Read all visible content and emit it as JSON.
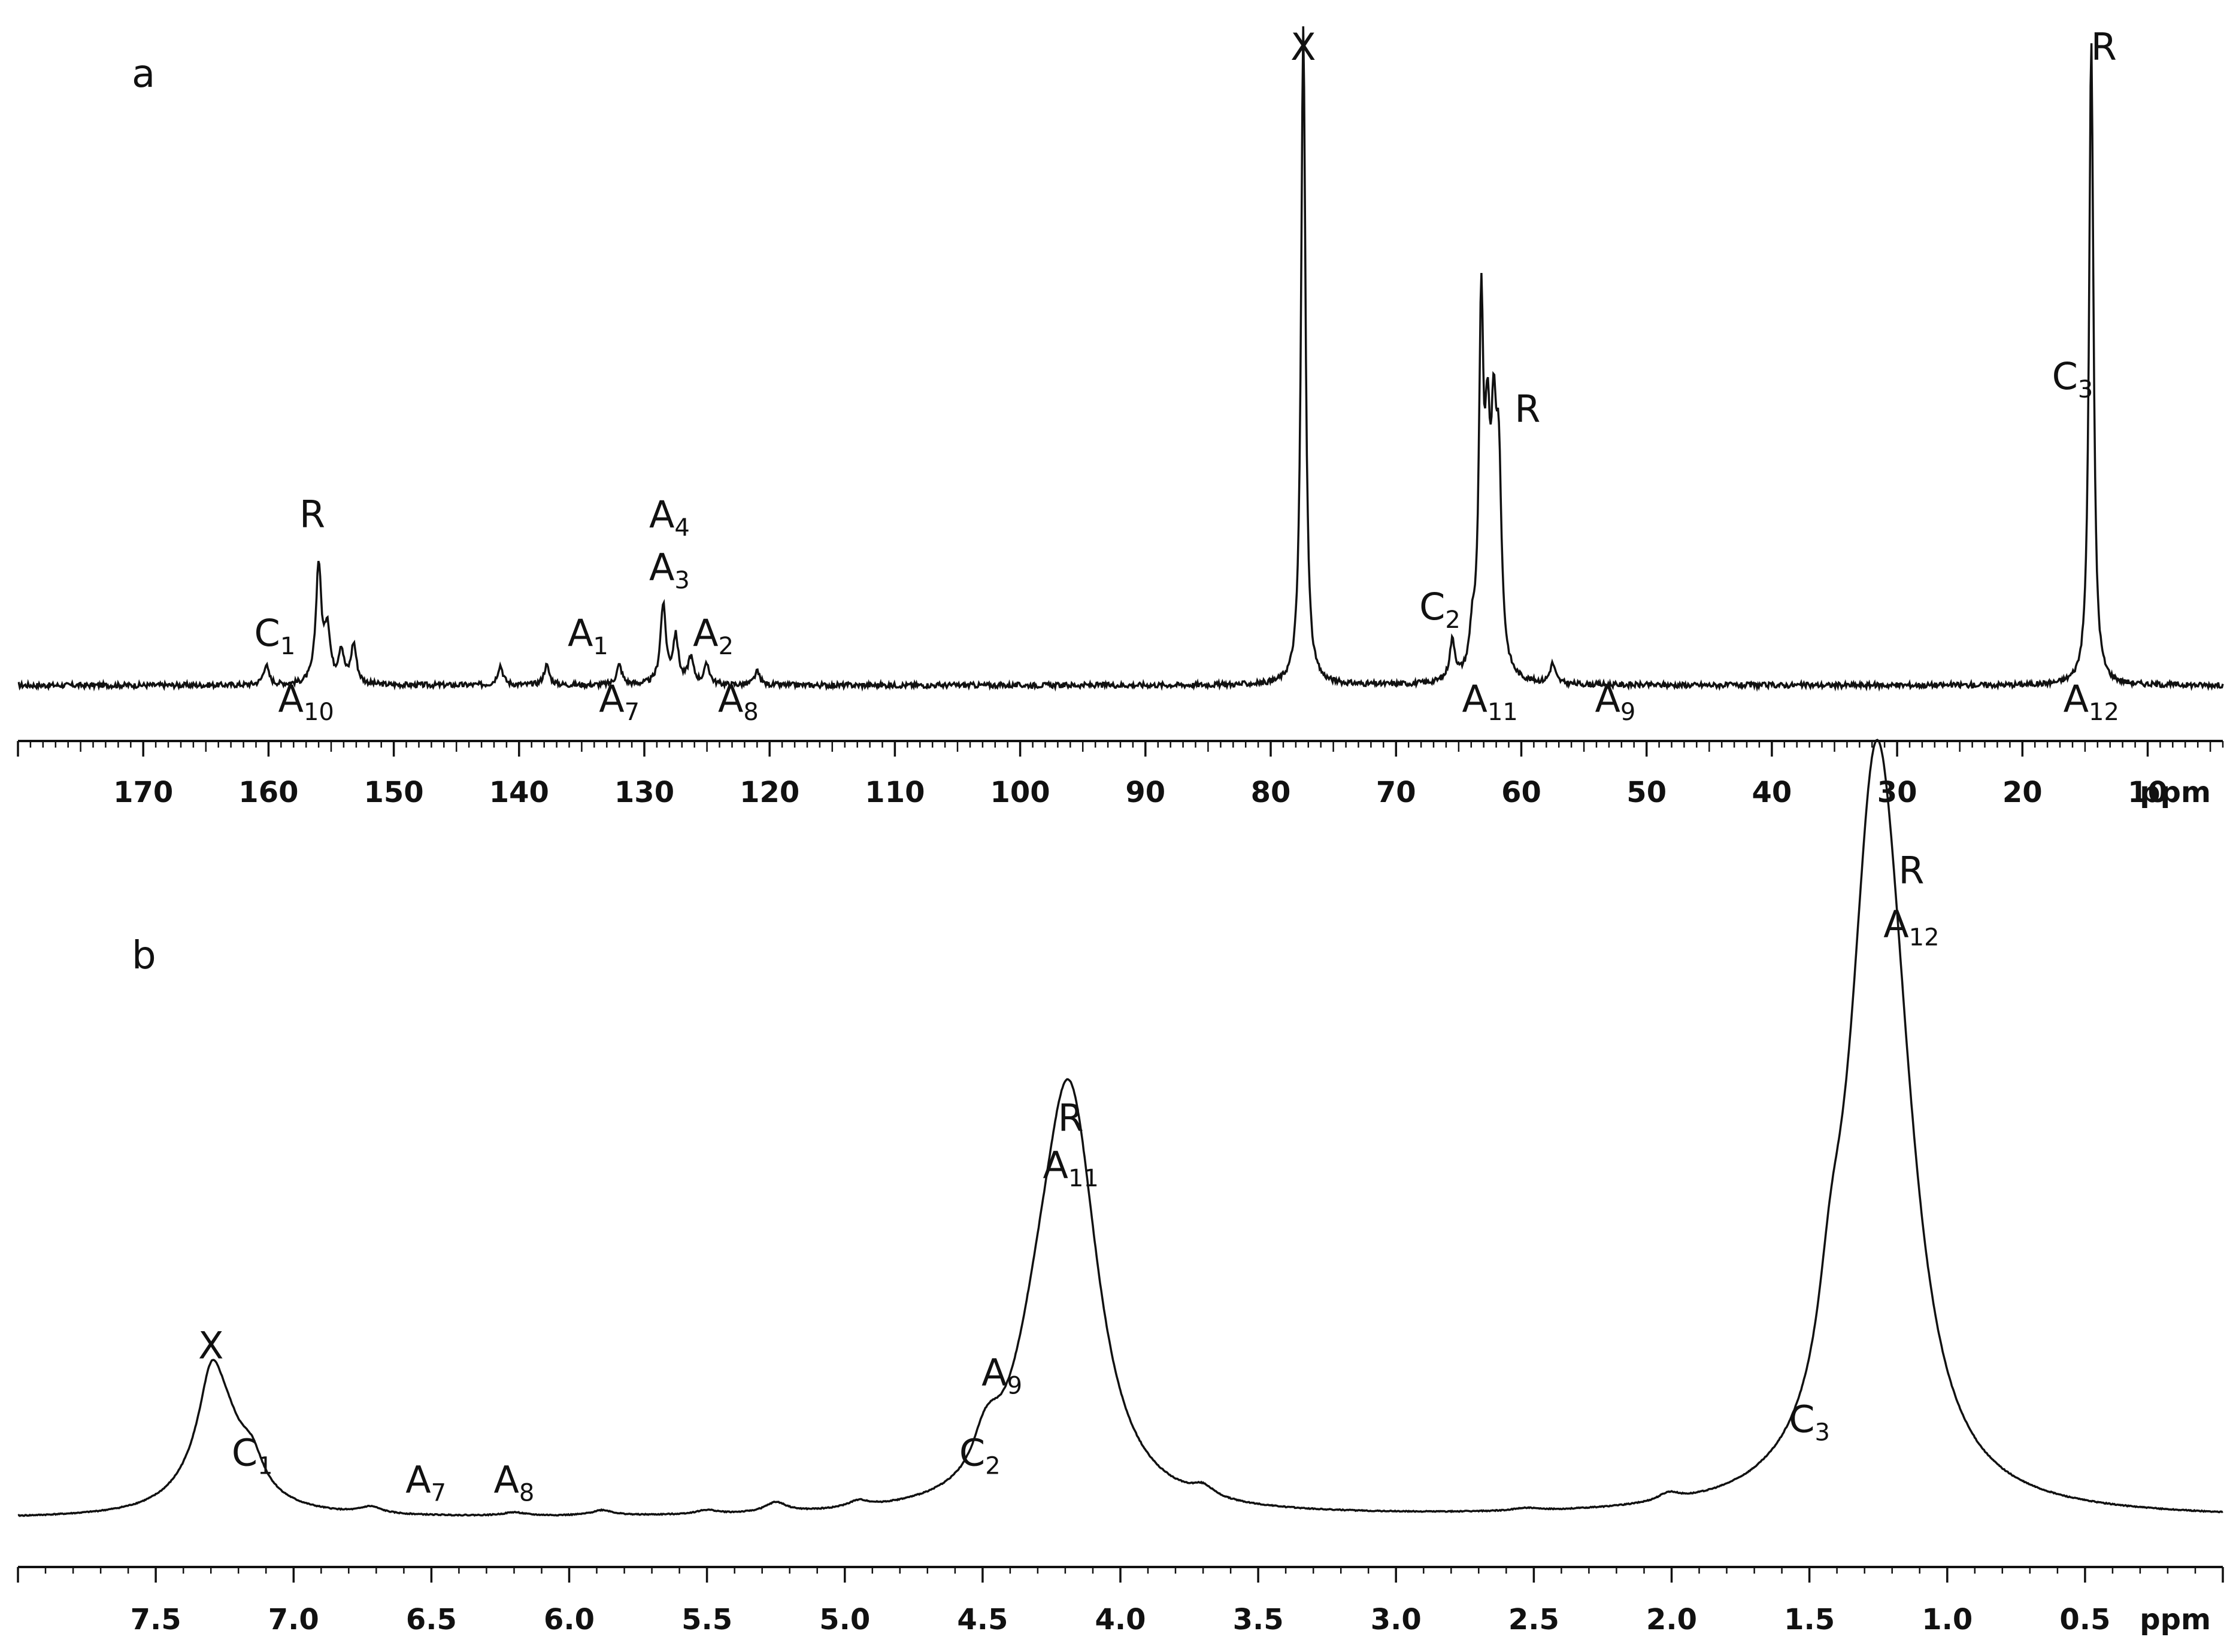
{
  "chart_data": [
    {
      "type": "line",
      "panel": "a",
      "xlabel": "ppm",
      "x_reversed": true,
      "xlim": [
        180,
        4
      ],
      "x_ticks": [
        170,
        160,
        150,
        140,
        130,
        120,
        110,
        100,
        90,
        80,
        70,
        60,
        50,
        40,
        30,
        20,
        10
      ],
      "y_axis_shown": false,
      "grid": false,
      "legend": "none",
      "line_color": "#111111",
      "peaks": [
        {
          "ppm": 160.2,
          "height": 0.03
        },
        {
          "ppm": 156.0,
          "height": 0.18
        },
        {
          "ppm": 155.3,
          "height": 0.08
        },
        {
          "ppm": 154.2,
          "height": 0.05
        },
        {
          "ppm": 153.2,
          "height": 0.06
        },
        {
          "ppm": 141.5,
          "height": 0.03
        },
        {
          "ppm": 137.8,
          "height": 0.03
        },
        {
          "ppm": 132.0,
          "height": 0.03
        },
        {
          "ppm": 128.5,
          "height": 0.12
        },
        {
          "ppm": 127.5,
          "height": 0.07
        },
        {
          "ppm": 126.3,
          "height": 0.04
        },
        {
          "ppm": 125.0,
          "height": 0.03
        },
        {
          "ppm": 121.0,
          "height": 0.02
        },
        {
          "ppm": 77.4,
          "height": 1.0
        },
        {
          "ppm": 65.5,
          "height": 0.06
        },
        {
          "ppm": 63.9,
          "height": 0.06
        },
        {
          "ppm": 63.2,
          "height": 0.52
        },
        {
          "ppm": 62.7,
          "height": 0.3
        },
        {
          "ppm": 62.2,
          "height": 0.3
        },
        {
          "ppm": 61.8,
          "height": 0.28
        },
        {
          "ppm": 57.5,
          "height": 0.03
        },
        {
          "ppm": 14.5,
          "height": 0.98
        }
      ],
      "annotations": [
        {
          "base": "X",
          "sub": "",
          "ppm": 77.4,
          "level": 0.95
        },
        {
          "base": "R",
          "sub": "",
          "ppm": 13.5,
          "level": 0.95
        },
        {
          "base": "C",
          "sub": "3",
          "ppm": 16.0,
          "level": 0.45
        },
        {
          "base": "R",
          "sub": "",
          "ppm": 59.5,
          "level": 0.4
        },
        {
          "base": "C",
          "sub": "2",
          "ppm": 66.5,
          "level": 0.1
        },
        {
          "base": "A",
          "sub": "11",
          "ppm": 62.5,
          "level": -0.04
        },
        {
          "base": "A",
          "sub": "9",
          "ppm": 52.5,
          "level": -0.04
        },
        {
          "base": "A",
          "sub": "12",
          "ppm": 14.5,
          "level": -0.04
        },
        {
          "base": "R",
          "sub": "",
          "ppm": 156.5,
          "level": 0.24
        },
        {
          "base": "C",
          "sub": "1",
          "ppm": 159.5,
          "level": 0.06
        },
        {
          "base": "A",
          "sub": "10",
          "ppm": 157.0,
          "level": -0.04
        },
        {
          "base": "A",
          "sub": "4",
          "ppm": 128.0,
          "level": 0.24
        },
        {
          "base": "A",
          "sub": "3",
          "ppm": 128.0,
          "level": 0.16
        },
        {
          "base": "A",
          "sub": "2",
          "ppm": 124.5,
          "level": 0.06
        },
        {
          "base": "A",
          "sub": "1",
          "ppm": 134.5,
          "level": 0.06
        },
        {
          "base": "A",
          "sub": "7",
          "ppm": 132.0,
          "level": -0.04
        },
        {
          "base": "A",
          "sub": "8",
          "ppm": 122.5,
          "level": -0.04
        }
      ]
    },
    {
      "type": "line",
      "panel": "b",
      "xlabel": "ppm",
      "x_reversed": true,
      "xlim": [
        8.0,
        0.0
      ],
      "x_ticks": [
        7.5,
        7.0,
        6.5,
        6.0,
        5.5,
        5.0,
        4.5,
        4.0,
        3.5,
        3.0,
        2.5,
        2.0,
        1.5,
        1.0,
        0.5
      ],
      "y_axis_shown": false,
      "grid": false,
      "legend": "none",
      "line_color": "#111111",
      "peaks": [
        {
          "ppm": 7.3,
          "height": 0.08
        },
        {
          "ppm": 7.27,
          "height": 0.16
        },
        {
          "ppm": 7.15,
          "height": 0.04
        },
        {
          "ppm": 6.72,
          "height": 0.01
        },
        {
          "ppm": 6.2,
          "height": 0.005
        },
        {
          "ppm": 5.88,
          "height": 0.008
        },
        {
          "ppm": 5.5,
          "height": 0.006
        },
        {
          "ppm": 5.25,
          "height": 0.015
        },
        {
          "ppm": 4.95,
          "height": 0.01
        },
        {
          "ppm": 4.5,
          "height": 0.035
        },
        {
          "ppm": 4.47,
          "height": 0.03
        },
        {
          "ppm": 4.3,
          "height": 0.12
        },
        {
          "ppm": 4.2,
          "height": 0.4
        },
        {
          "ppm": 4.15,
          "height": 0.22
        },
        {
          "ppm": 3.7,
          "height": 0.015
        },
        {
          "ppm": 2.53,
          "height": 0.004
        },
        {
          "ppm": 2.01,
          "height": 0.012
        },
        {
          "ppm": 1.43,
          "height": 0.07
        },
        {
          "ppm": 1.41,
          "height": 0.05
        },
        {
          "ppm": 1.27,
          "height": 0.72
        },
        {
          "ppm": 1.24,
          "height": 0.3
        },
        {
          "ppm": 1.18,
          "height": 0.22
        }
      ],
      "annotations": [
        {
          "base": "R",
          "sub": "",
          "ppm": 1.13,
          "level": 0.95
        },
        {
          "base": "A",
          "sub": "12",
          "ppm": 1.13,
          "level": 0.87
        },
        {
          "base": "R",
          "sub": "",
          "ppm": 4.18,
          "level": 0.58
        },
        {
          "base": "A",
          "sub": "11",
          "ppm": 4.18,
          "level": 0.51
        },
        {
          "base": "A",
          "sub": "9",
          "ppm": 4.43,
          "level": 0.2
        },
        {
          "base": "X",
          "sub": "",
          "ppm": 7.3,
          "level": 0.24
        },
        {
          "base": "C",
          "sub": "1",
          "ppm": 7.15,
          "level": 0.08
        },
        {
          "base": "A",
          "sub": "7",
          "ppm": 6.52,
          "level": 0.04
        },
        {
          "base": "A",
          "sub": "8",
          "ppm": 6.2,
          "level": 0.04
        },
        {
          "base": "C",
          "sub": "2",
          "ppm": 4.51,
          "level": 0.08
        },
        {
          "base": "C",
          "sub": "3",
          "ppm": 1.5,
          "level": 0.13
        }
      ]
    }
  ]
}
